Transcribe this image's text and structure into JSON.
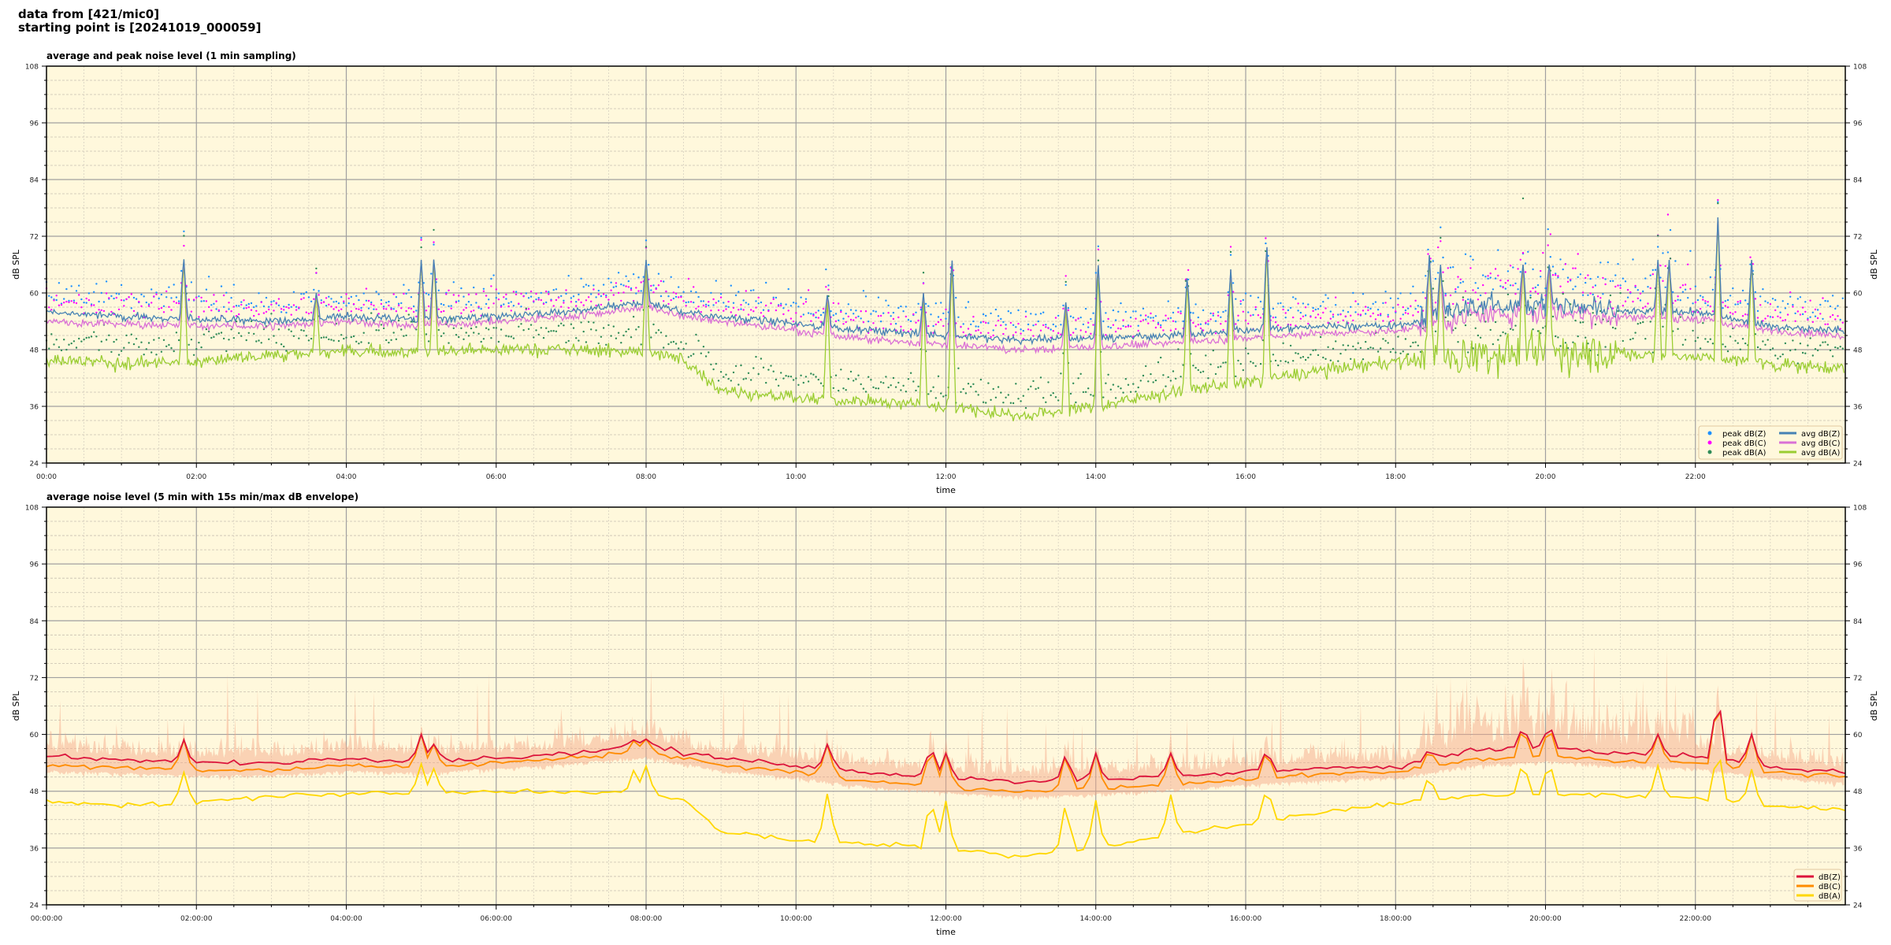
{
  "header": {
    "line1": "data from [421/mic0]",
    "line2": "starting point is [20241019_000059]"
  },
  "chart_data": [
    {
      "type": "line",
      "title": "average and peak noise level (1 min sampling)",
      "xlabel": "time",
      "ylabel": "dB SPL",
      "xlim_hours": [
        0,
        24
      ],
      "ylim": [
        24,
        108
      ],
      "yticks": [
        24,
        36,
        48,
        60,
        72,
        84,
        96,
        108
      ],
      "xtick_labels": [
        "00:00",
        "02:00",
        "04:00",
        "06:00",
        "08:00",
        "10:00",
        "12:00",
        "14:00",
        "16:00",
        "18:00",
        "20:00",
        "22:00"
      ],
      "grid": true,
      "background": "#fff8dc",
      "legend": "lower-right",
      "x_hours": [
        0,
        1,
        2,
        3,
        4,
        5,
        6,
        7,
        8,
        8.5,
        9,
        10,
        11,
        12,
        13,
        14,
        15,
        16,
        17,
        18,
        19,
        20,
        21,
        22,
        23,
        24
      ],
      "series": [
        {
          "name": "avg dB(Z)",
          "color": "#4682b4",
          "kind": "line",
          "values": [
            56,
            55,
            54.5,
            54,
            55,
            54.5,
            55,
            56,
            58,
            56,
            55,
            53.5,
            52,
            51,
            50,
            50.5,
            51,
            52,
            53,
            53,
            57,
            58,
            56,
            56,
            53,
            52
          ]
        },
        {
          "name": "avg dB(C)",
          "color": "#da70d6",
          "kind": "line",
          "values": [
            54,
            53.5,
            53,
            53,
            54,
            53,
            54,
            55,
            57,
            55,
            54,
            52,
            50,
            49,
            48,
            48.5,
            49.5,
            50.5,
            51.5,
            52,
            55,
            56,
            55,
            54.5,
            52,
            51
          ]
        },
        {
          "name": "avg dB(A)",
          "color": "#9acd32",
          "kind": "line",
          "values": [
            46,
            45,
            45.5,
            47,
            47.5,
            47.5,
            48,
            48,
            47.5,
            46,
            39.5,
            37.5,
            37,
            36,
            34,
            36,
            39,
            41,
            43.5,
            45.5,
            47,
            47.5,
            47,
            46.5,
            45,
            44
          ]
        },
        {
          "name": "peak dB(Z)",
          "color": "#1e90ff",
          "kind": "scatter"
        },
        {
          "name": "peak dB(C)",
          "color": "#ff00ff",
          "kind": "scatter"
        },
        {
          "name": "peak dB(A)",
          "color": "#2e8b57",
          "kind": "scatter"
        }
      ],
      "spikes": [
        {
          "t": 1.83,
          "peak": 68
        },
        {
          "t": 3.6,
          "peak": 60
        },
        {
          "t": 5.0,
          "peak": 67
        },
        {
          "t": 5.17,
          "peak": 68
        },
        {
          "t": 8.0,
          "peak": 67
        },
        {
          "t": 10.42,
          "peak": 60
        },
        {
          "t": 11.7,
          "peak": 60
        },
        {
          "t": 12.08,
          "peak": 68
        },
        {
          "t": 13.6,
          "peak": 58
        },
        {
          "t": 14.03,
          "peak": 67
        },
        {
          "t": 15.22,
          "peak": 64
        },
        {
          "t": 15.8,
          "peak": 65
        },
        {
          "t": 16.28,
          "peak": 71
        },
        {
          "t": 18.45,
          "peak": 68
        },
        {
          "t": 18.6,
          "peak": 66
        },
        {
          "t": 19.7,
          "peak": 66
        },
        {
          "t": 20.05,
          "peak": 66
        },
        {
          "t": 21.5,
          "peak": 67
        },
        {
          "t": 21.65,
          "peak": 67
        },
        {
          "t": 22.3,
          "peak": 76
        },
        {
          "t": 22.75,
          "peak": 67
        }
      ]
    },
    {
      "type": "line",
      "title": "average noise level (5 min with 15s min/max dB envelope)",
      "xlabel": "time",
      "ylabel": "dB SPL",
      "xlim_hours": [
        0,
        24
      ],
      "ylim": [
        24,
        108
      ],
      "yticks": [
        24,
        36,
        48,
        60,
        72,
        84,
        96,
        108
      ],
      "xtick_labels": [
        "00:00:00",
        "02:00:00",
        "04:00:00",
        "06:00:00",
        "08:00:00",
        "10:00:00",
        "12:00:00",
        "14:00:00",
        "16:00:00",
        "18:00:00",
        "20:00:00",
        "22:00:00"
      ],
      "grid": true,
      "background": "#fff8dc",
      "legend": "lower-right",
      "envelope_color": "#f4a582",
      "x_hours": [
        0,
        1,
        2,
        3,
        4,
        5,
        6,
        7,
        8,
        8.5,
        9,
        10,
        11,
        12,
        13,
        14,
        15,
        16,
        17,
        18,
        19,
        20,
        21,
        22,
        23,
        24
      ],
      "series": [
        {
          "name": "dB(Z)",
          "color": "#dc143c",
          "values": [
            55.5,
            54.5,
            54,
            54,
            55,
            54.5,
            55,
            56,
            58,
            56,
            55,
            53.5,
            52,
            51,
            50,
            50.5,
            51,
            52,
            53,
            53,
            56.5,
            57.5,
            56,
            55.5,
            53,
            52
          ]
        },
        {
          "name": "dB(C)",
          "color": "#ff8c00",
          "values": [
            53.5,
            53,
            52.5,
            52.5,
            53.5,
            53,
            54,
            55,
            56.5,
            55,
            53.5,
            52,
            50,
            49,
            48,
            48.5,
            49.5,
            50.5,
            51.5,
            52,
            54.5,
            55.5,
            54.5,
            54,
            52,
            51
          ]
        },
        {
          "name": "dB(A)",
          "color": "#ffd700",
          "values": [
            46,
            45,
            45.5,
            47,
            47.5,
            47.5,
            48,
            48,
            47.5,
            46,
            39.5,
            37.5,
            37,
            36,
            34,
            36,
            39,
            41,
            43.5,
            45.5,
            47,
            47.5,
            47,
            46.5,
            45,
            44
          ]
        }
      ],
      "spikes": [
        {
          "t": 1.83,
          "peak": 59
        },
        {
          "t": 5.0,
          "peak": 60
        },
        {
          "t": 5.17,
          "peak": 58
        },
        {
          "t": 7.85,
          "peak": 59
        },
        {
          "t": 8.0,
          "peak": 59
        },
        {
          "t": 10.42,
          "peak": 58
        },
        {
          "t": 11.8,
          "peak": 58
        },
        {
          "t": 12.0,
          "peak": 56
        },
        {
          "t": 13.6,
          "peak": 56
        },
        {
          "t": 14.0,
          "peak": 56
        },
        {
          "t": 15.0,
          "peak": 56
        },
        {
          "t": 16.28,
          "peak": 57
        },
        {
          "t": 18.45,
          "peak": 57
        },
        {
          "t": 19.7,
          "peak": 62
        },
        {
          "t": 20.05,
          "peak": 62
        },
        {
          "t": 21.5,
          "peak": 60
        },
        {
          "t": 22.3,
          "peak": 69
        },
        {
          "t": 22.75,
          "peak": 60
        }
      ]
    }
  ]
}
